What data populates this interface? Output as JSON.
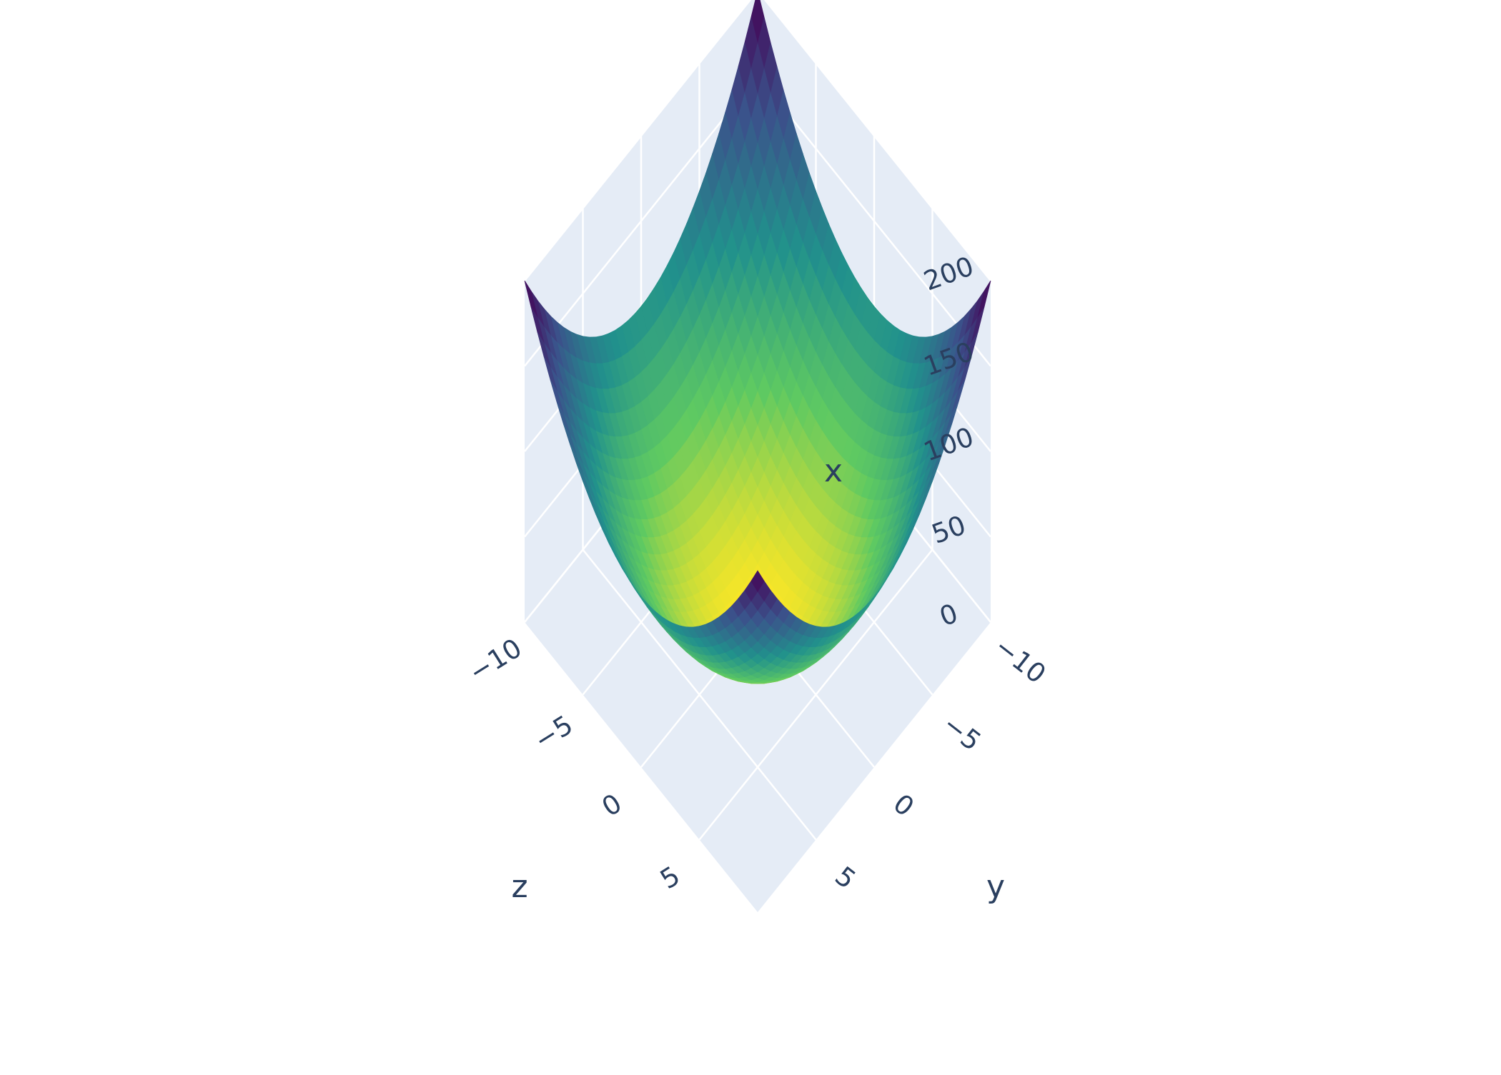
{
  "chart_data": {
    "type": "surface",
    "function": "x = y^2 + z^2",
    "colorscale": "Viridis",
    "surface_line_colors": [
      "#440154",
      "#3b528b",
      "#21918c",
      "#5ec962",
      "#fde725"
    ],
    "grid": true,
    "legend": "none",
    "background_color": "#e5ecf6",
    "grid_color": "#ffffff",
    "text_color": "#2a3f5f",
    "axes": {
      "vertical": {
        "title": "x",
        "range": [
          0,
          200
        ],
        "ticks": [
          "0",
          "50",
          "100",
          "150",
          "200"
        ]
      },
      "left": {
        "title": "z",
        "range": [
          -10,
          10
        ],
        "ticks": [
          "−10",
          "−5",
          "0",
          "5"
        ]
      },
      "right": {
        "title": "y",
        "range": [
          -10,
          10
        ],
        "ticks": [
          "−10",
          "−5",
          "0",
          "5"
        ]
      }
    }
  }
}
